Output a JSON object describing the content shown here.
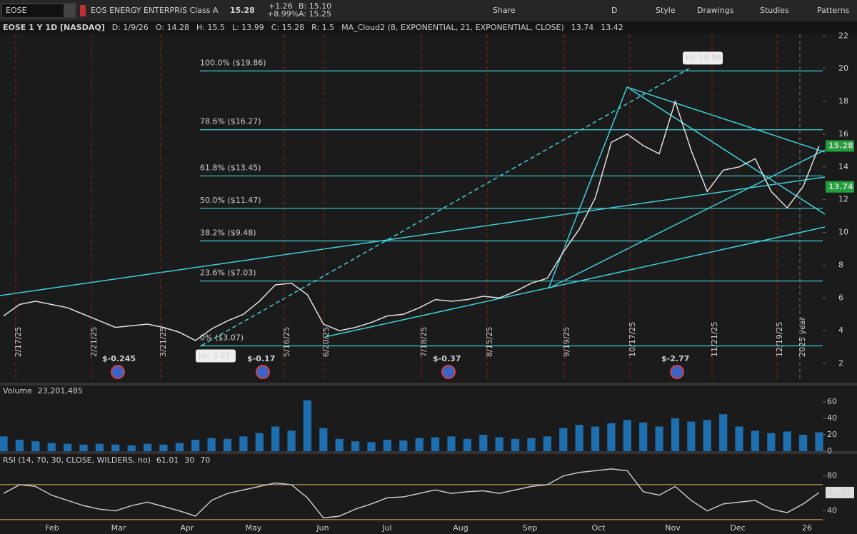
{
  "toolbar": {
    "symbol": "EOSE",
    "company": "EOS ENERGY ENTERPRIS Class A",
    "price": "15.28",
    "change": "+1.26",
    "change_pct": "+8.99%",
    "bid": "B: 15.10",
    "ask": "A: 15.25",
    "buttons": [
      "Share",
      "D",
      "Style",
      "Drawings",
      "Studies",
      "Patterns"
    ]
  },
  "header": [
    "EOSE 1 Y 1D [NASDAQ]",
    "D: 1/9/26",
    "O: 14.28",
    "H: 15.5",
    "L: 13.99",
    "C: 15.28",
    "R: 1.5",
    "MA_Cloud2 (8, EXPONENTIAL, 21, EXPONENTIAL, CLOSE)",
    "13.74",
    "13.42"
  ],
  "date_markers": [
    "2/17/25",
    "2/21/25",
    "3/21/25",
    "5/16/25",
    "6/20/25",
    "7/18/25",
    "8/15/25",
    "9/19/25",
    "10/17/25",
    "11/21/25",
    "12/19/25",
    "2025 year"
  ],
  "earnings": [
    "$-0.245",
    "$-0.17",
    "$-0.37",
    "$-2.77"
  ],
  "price_tags": [
    "15.28",
    "13.74"
  ],
  "chart_data": [
    {
      "type": "line",
      "title": "EOSE 1 Y 1D [NASDAQ]",
      "x_labels": [
        "Feb",
        "Mar",
        "Apr",
        "May",
        "Jun",
        "Jul",
        "Aug",
        "Sep",
        "Oct",
        "Nov",
        "Dec",
        "26"
      ],
      "series": [
        {
          "name": "EOSE",
          "color": "#e0e0e0",
          "values": [
            4.9,
            5.6,
            5.8,
            5.6,
            5.4,
            5.0,
            4.6,
            4.2,
            4.3,
            4.4,
            4.2,
            3.9,
            3.4,
            4.1,
            4.6,
            5.0,
            5.8,
            6.8,
            6.9,
            6.2,
            4.4,
            4.0,
            4.2,
            4.5,
            4.9,
            5.0,
            5.4,
            5.9,
            5.8,
            5.9,
            6.1,
            6.0,
            6.4,
            6.9,
            7.2,
            8.8,
            10.2,
            12.1,
            15.5,
            16.0,
            15.3,
            14.8,
            18.0,
            15.0,
            12.5,
            13.8,
            14.0,
            14.5,
            12.5,
            11.5,
            12.8,
            15.28
          ]
        }
      ],
      "ylim": [
        1,
        22.1
      ],
      "yticks": [
        2,
        4,
        6,
        8,
        10,
        12,
        14,
        16,
        18,
        20,
        22
      ],
      "fib_levels": [
        {
          "value": 19.86,
          "label": "100.0%  ($19.86)"
        },
        {
          "value": 16.27,
          "label": "78.6%  ($16.27)"
        },
        {
          "value": 13.45,
          "label": "61.8%  ($13.45)"
        },
        {
          "value": 11.47,
          "label": "50.0%  ($11.47)"
        },
        {
          "value": 9.48,
          "label": "38.2%  ($9.48)"
        },
        {
          "value": 7.03,
          "label": "23.6%  ($7.03)"
        },
        {
          "value": 3.07,
          "label": "0%  ($3.07)"
        }
      ],
      "annotations": [
        {
          "value": 19.86,
          "label": "Hi: 19.86"
        },
        {
          "value": 3.07,
          "label": "Lo: 3.07"
        }
      ],
      "grid": true
    },
    {
      "type": "bar",
      "title": "Volume",
      "subtitle": "23,201,485",
      "color": "#1e6fb0",
      "values": [
        18,
        14,
        12,
        10,
        9,
        8,
        9,
        8,
        7,
        9,
        8,
        10,
        14,
        16,
        15,
        18,
        22,
        30,
        25,
        62,
        28,
        15,
        12,
        11,
        14,
        13,
        16,
        17,
        18,
        15,
        20,
        17,
        15,
        16,
        18,
        28,
        32,
        30,
        34,
        38,
        35,
        30,
        40,
        36,
        38,
        45,
        30,
        25,
        22,
        24,
        20,
        23
      ],
      "ylim": [
        0,
        73
      ],
      "yticks": [
        0,
        20,
        40,
        60
      ]
    },
    {
      "type": "line",
      "title": "RSI (14, 70, 30, CLOSE, WILDERS, no)",
      "subtitle": "61.01",
      "levels": [
        "30",
        "70"
      ],
      "series": [
        {
          "name": "RSI",
          "color": "#c8c8c8",
          "values": [
            60,
            70,
            68,
            58,
            52,
            46,
            42,
            40,
            46,
            50,
            45,
            40,
            34,
            52,
            60,
            64,
            68,
            72,
            70,
            55,
            32,
            34,
            42,
            48,
            55,
            56,
            60,
            64,
            60,
            62,
            63,
            60,
            64,
            68,
            70,
            80,
            84,
            86,
            88,
            86,
            62,
            58,
            68,
            52,
            40,
            48,
            50,
            52,
            42,
            38,
            48,
            61.01
          ]
        }
      ],
      "ylim": [
        16,
        92
      ],
      "yticks": [
        40,
        80
      ],
      "hlines": [
        70,
        30
      ]
    }
  ]
}
